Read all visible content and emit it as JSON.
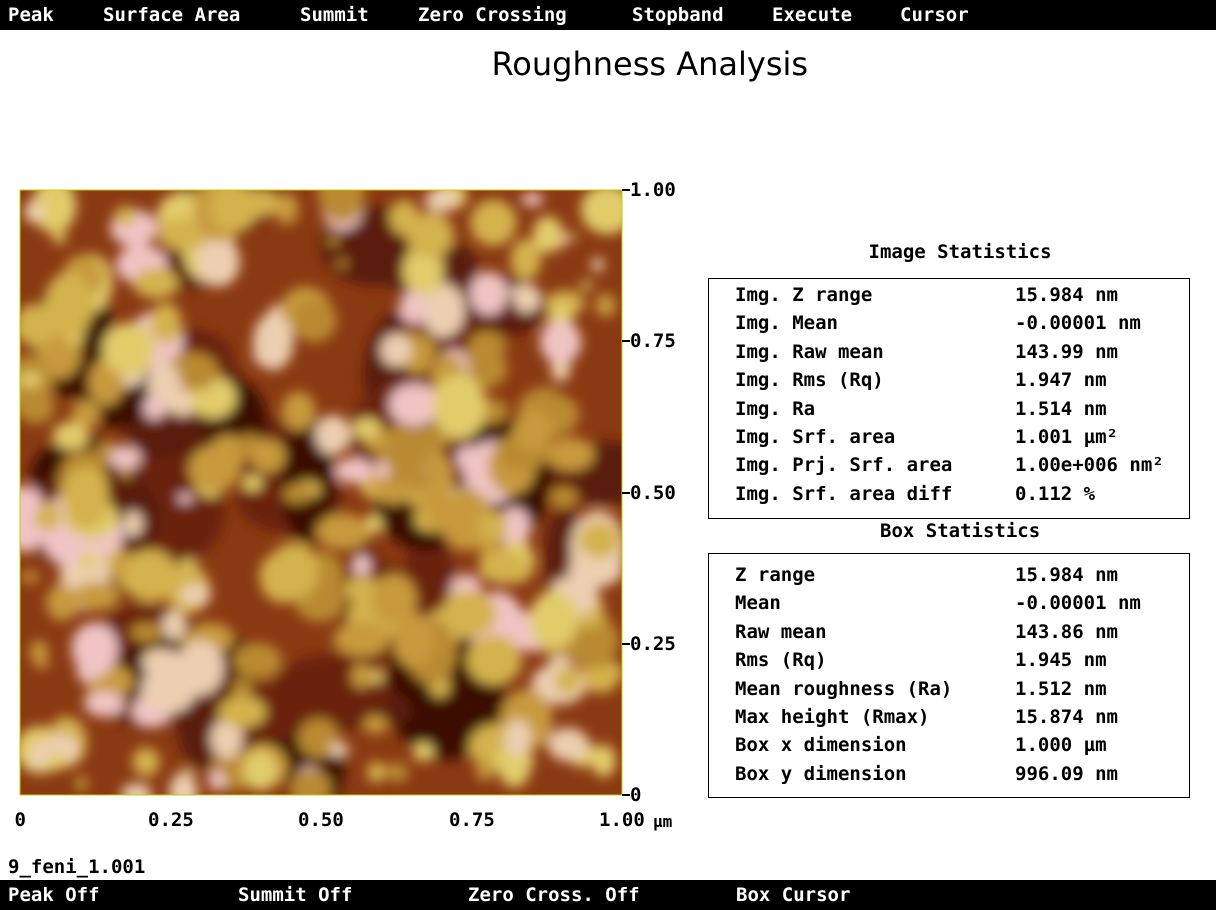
{
  "menu": [
    "Peak",
    "Surface Area",
    "Summit",
    "Zero Crossing",
    "Stopband",
    "Execute",
    "Cursor"
  ],
  "title": "Roughness Analysis",
  "image": {
    "y_ticks": [
      "1.00",
      "0.75",
      "0.50",
      "0.25",
      "0"
    ],
    "x_ticks": [
      "0",
      "0.25",
      "0.50",
      "0.75",
      "1.00"
    ],
    "x_unit": "µm",
    "file": "9_feni_1.001"
  },
  "image_statistics": {
    "title": "Image Statistics",
    "rows": [
      [
        "Img. Z range",
        "15.984 nm"
      ],
      [
        "Img. Mean",
        "-0.00001 nm"
      ],
      [
        "Img. Raw mean",
        "143.99 nm"
      ],
      [
        "Img. Rms (Rq)",
        "1.947 nm"
      ],
      [
        "Img. Ra",
        "1.514 nm"
      ],
      [
        "Img. Srf. area",
        "1.001 µm²"
      ],
      [
        "Img. Prj. Srf. area",
        "1.00e+006 nm²"
      ],
      [
        "Img. Srf. area diff",
        "0.112 %"
      ]
    ]
  },
  "box_statistics": {
    "title": "Box Statistics",
    "rows": [
      [
        "Z range",
        "15.984 nm"
      ],
      [
        "Mean",
        "-0.00001 nm"
      ],
      [
        "Raw mean",
        "143.86 nm"
      ],
      [
        "Rms (Rq)",
        "1.945 nm"
      ],
      [
        "Mean roughness (Ra)",
        "1.512 nm"
      ],
      [
        "Max height (Rmax)",
        "15.874 nm"
      ],
      [
        "Box x dimension",
        "1.000 µm"
      ],
      [
        "Box y dimension",
        "996.09 nm"
      ]
    ]
  },
  "status_bar": [
    "Peak Off",
    "Summit Off",
    "Zero Cross. Off",
    "Box Cursor"
  ]
}
